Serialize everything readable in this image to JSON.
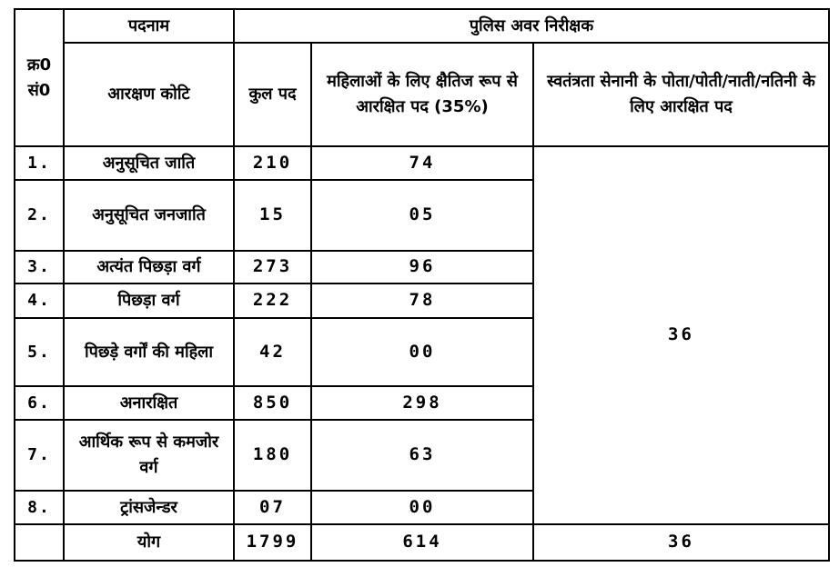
{
  "header": {
    "sr_no": "क्र0 सं0",
    "designation_label": "पदनाम",
    "post_group": "पुलिस अवर निरीक्षक",
    "category_label": "आरक्षण कोटि",
    "total_posts": "कुल पद",
    "women_reserved": "महिलाओं के लिए क्षैतिज रूप से आरक्षित पद (35%)",
    "freedom_fighter": "स्वतंत्रता सेनानी के पोता/पोती/नाती/नतिनी के लिए आरक्षित पद"
  },
  "rows": [
    {
      "sr": "1.",
      "category": "अनुसूचित जाति",
      "total": "210",
      "women": "74"
    },
    {
      "sr": "2.",
      "category": "अनुसूचित जनजाति",
      "total": "15",
      "women": "05"
    },
    {
      "sr": "3.",
      "category": "अत्यंत पिछड़ा वर्ग",
      "total": "273",
      "women": "96"
    },
    {
      "sr": "4.",
      "category": "पिछड़ा वर्ग",
      "total": "222",
      "women": "78"
    },
    {
      "sr": "5.",
      "category": "पिछड़े वर्गों की महिला",
      "total": "42",
      "women": "00"
    },
    {
      "sr": "6.",
      "category": "अनारक्षित",
      "total": "850",
      "women": "298"
    },
    {
      "sr": "7.",
      "category": "आर्थिक रूप से कमजोर वर्ग",
      "total": "180",
      "women": "63"
    },
    {
      "sr": "8.",
      "category": "ट्रांसजेन्डर",
      "total": "07",
      "women": "00"
    }
  ],
  "freedom_fighter_merged": "36",
  "total_row": {
    "sr": "",
    "label": "योग",
    "total": "1799",
    "women": "614",
    "freedom_fighter": "36"
  }
}
